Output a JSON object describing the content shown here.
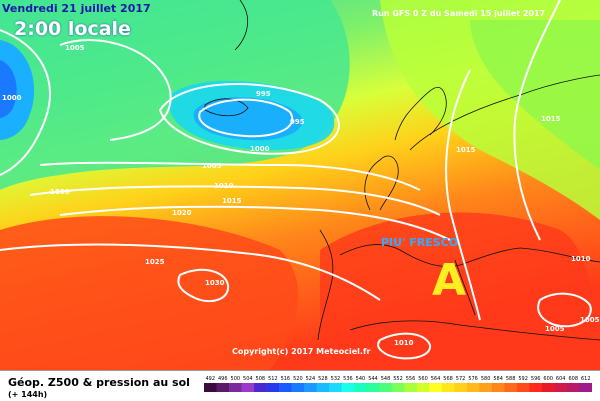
{
  "header": {
    "date": "Vendredi 21 juillet 2017",
    "time": "2:00 locale",
    "run": "Run GFS 0 Z du Samedi 15 juillet 2017"
  },
  "annotations": {
    "text": "PIU' FRESCO",
    "high_marker": "A"
  },
  "copyright": "Copyright(c) 2017 Meteociel.fr",
  "footer": {
    "title": "Géop. Z500 & pression au sol",
    "subtitle": "(+ 144h)"
  },
  "isobars": [
    "1005",
    "1000",
    "995",
    "995",
    "1000",
    "1005",
    "1010",
    "1015",
    "1000",
    "1020",
    "1025",
    "1030",
    "1015",
    "1015",
    "1010",
    "1005",
    "1010",
    "1005"
  ],
  "scale": {
    "labels": [
      "492",
      "496",
      "500",
      "504",
      "508",
      "512",
      "516",
      "520",
      "524",
      "528",
      "532",
      "536",
      "540",
      "544",
      "548",
      "552",
      "556",
      "560",
      "564",
      "568",
      "572",
      "576",
      "580",
      "584",
      "588",
      "592",
      "596",
      "600",
      "604",
      "608",
      "612"
    ],
    "colors": [
      "#3d0a3d",
      "#5a1a6a",
      "#7a2a9a",
      "#9a3aca",
      "#4a2ad0",
      "#2a3aea",
      "#1a5aff",
      "#1a7aff",
      "#1a9aff",
      "#1abaff",
      "#1adaff",
      "#1affe8",
      "#1affc0",
      "#2aff9a",
      "#4aff7a",
      "#7aff5a",
      "#a8ff3a",
      "#d0ff2a",
      "#ffff22",
      "#ffe81a",
      "#ffd21a",
      "#ffba1a",
      "#ffa01a",
      "#ff861a",
      "#ff6a1a",
      "#ff4a1a",
      "#ff2a1a",
      "#e81a2a",
      "#d01a4a",
      "#b81a6a",
      "#a01a8a"
    ]
  }
}
